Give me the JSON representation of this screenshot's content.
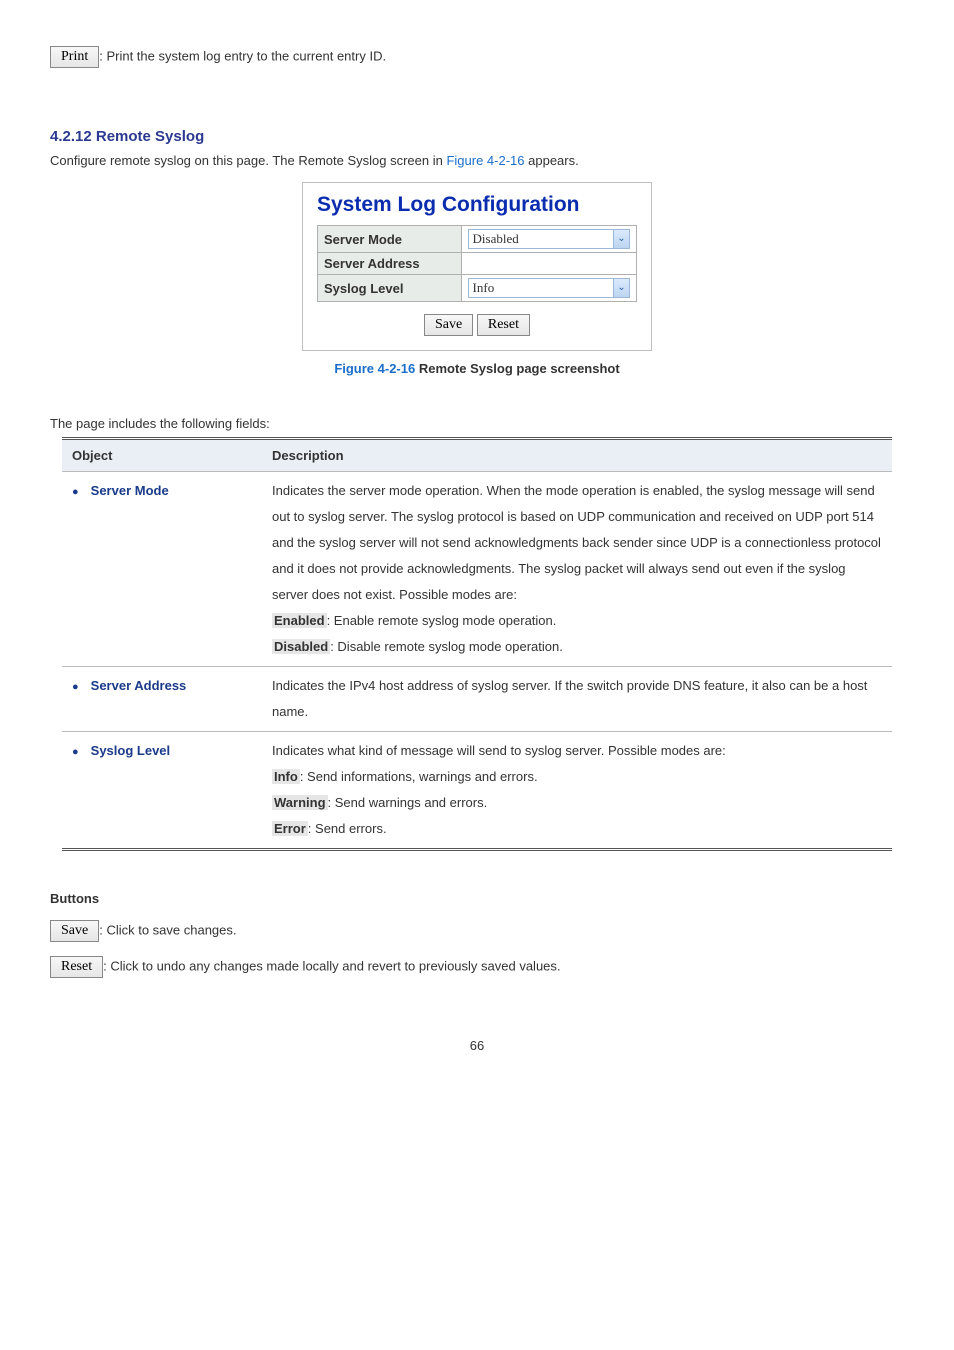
{
  "print_btn": "Print",
  "print_desc": ": Print the system log entry to the current entry ID.",
  "section_number": "4.2.12 Remote Syslog",
  "intro_before": "Configure remote syslog on this page. The Remote Syslog screen in ",
  "intro_ref": "Figure 4-2-16",
  "intro_after": " appears.",
  "panel": {
    "title": "System Log Configuration",
    "rows": [
      {
        "label": "Server Mode",
        "value": "Disabled",
        "has_select": true
      },
      {
        "label": "Server Address",
        "value": "",
        "has_select": false
      },
      {
        "label": "Syslog Level",
        "value": "Info",
        "has_select": true
      }
    ],
    "save_btn": "Save",
    "reset_btn": "Reset"
  },
  "caption_before": "Figure 4-2-16",
  "caption_after": " Remote Syslog page screenshot",
  "fields_intro": "The page includes the following fields:",
  "columns": {
    "object": "Object",
    "description": "Description"
  },
  "rows": {
    "server_mode": {
      "name": "Server Mode",
      "desc1": "Indicates the server mode operation. When the mode operation is enabled, the syslog message will send out to syslog server. The syslog protocol is based on UDP communication and received on UDP port 514 and the syslog server will not send acknowledgments back sender since UDP is a connectionless protocol and it does not provide acknowledgments. The syslog packet will always send out even if the syslog server does not exist. Possible modes are:",
      "opt1": "Enabled",
      "opt1_after": ": Enable remote syslog mode operation.",
      "opt2": "Disabled",
      "opt2_after": ": Disable remote syslog mode operation."
    },
    "server_address": {
      "name": "Server Address",
      "desc": "Indicates the IPv4 host address of syslog server. If the switch provide DNS feature, it also can be a host name."
    },
    "syslog_level": {
      "name": "Syslog Level",
      "desc1": "Indicates what kind of message will send to syslog server. Possible modes are:",
      "opt1": "Info",
      "opt1_after": ": Send informations, warnings and errors.",
      "opt2": "Warning",
      "opt2_after": ": Send warnings and errors.",
      "opt3": "Error",
      "opt3_after": ": Send errors."
    }
  },
  "buttons_heading": "Buttons",
  "save_btn": "Save",
  "save_desc": ": Click to save changes.",
  "reset_btn": "Reset",
  "reset_desc": ": Click to undo any changes made locally and revert to previously saved values.",
  "page_number": "66"
}
